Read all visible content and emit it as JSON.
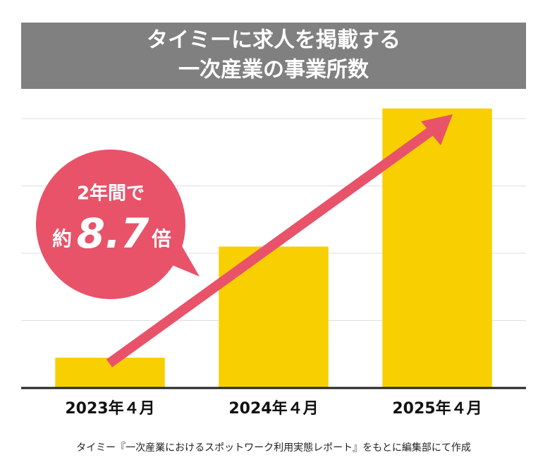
{
  "chart_data": {
    "type": "bar",
    "title": [
      "タイミーに求人を掲載する",
      "一次産業の事業所数"
    ],
    "categories": [
      "2023年４月",
      "2024年４月",
      "2025年４月"
    ],
    "values": [
      0.45,
      2.1,
      4.15
    ],
    "color": "#f8cf00",
    "ylim": [
      0,
      4.2
    ],
    "yticks": [
      1,
      2,
      3,
      4
    ],
    "grid": true,
    "annotation": {
      "line1": "2年間で",
      "prefix": "約",
      "value": "8.7",
      "suffix": "倍"
    },
    "source": "タイミー『一次産業におけるスポットワーク利用実態レポート』をもとに編集部にて作成"
  }
}
